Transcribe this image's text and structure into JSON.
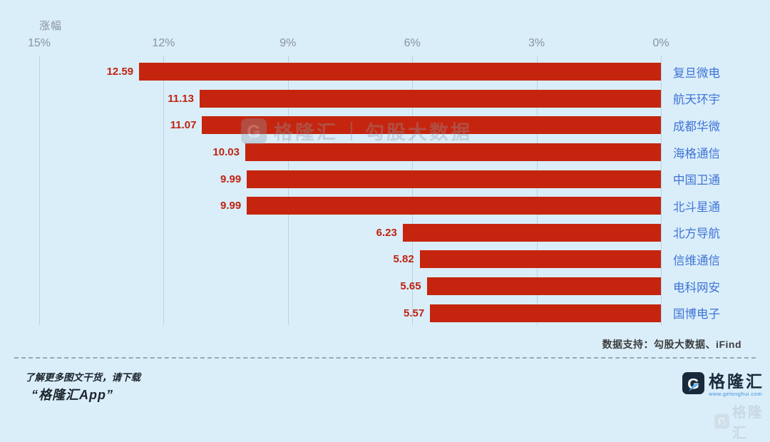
{
  "axis": {
    "title": "涨幅",
    "ticks": [
      "15%",
      "12%",
      "9%",
      "6%",
      "3%",
      "0%"
    ]
  },
  "chart_data": {
    "type": "bar",
    "orientation": "horizontal",
    "title": "涨幅",
    "xlabel": "涨幅",
    "ylabel": "",
    "axis_range": [
      15,
      0
    ],
    "axis_tick_values": [
      15,
      12,
      9,
      6,
      3,
      0
    ],
    "grid": true,
    "legend": false,
    "categories": [
      "复旦微电",
      "航天环宇",
      "成都华微",
      "海格通信",
      "中国卫通",
      "北斗星通",
      "北方导航",
      "信维通信",
      "电科网安",
      "国博电子"
    ],
    "values": [
      12.59,
      11.13,
      11.07,
      10.03,
      9.99,
      9.99,
      6.23,
      5.82,
      5.65,
      5.57
    ],
    "bar_color": "#c5250e",
    "value_label_color": "#bf2310",
    "category_label_color": "#3f74d6"
  },
  "watermark": {
    "brand": "格隆汇",
    "divider": "|",
    "product": "勾股大数据",
    "gmark": "G"
  },
  "footer": {
    "data_support": "数据支持：勾股大数据、iFind",
    "promo_line1": "了解更多图文干货，请下载",
    "promo_line2": "“格隆汇App”",
    "brand": "格隆汇",
    "brand_url": "www.gelonghui.com",
    "gmark": "G"
  },
  "colors": {
    "background": "#daeefa",
    "bar": "#c5250e",
    "category_blue": "#3f74d6",
    "axis_gray": "#8a939c",
    "logo_navy": "#18293b",
    "logo_arrow_blue": "#5fb0ec"
  }
}
